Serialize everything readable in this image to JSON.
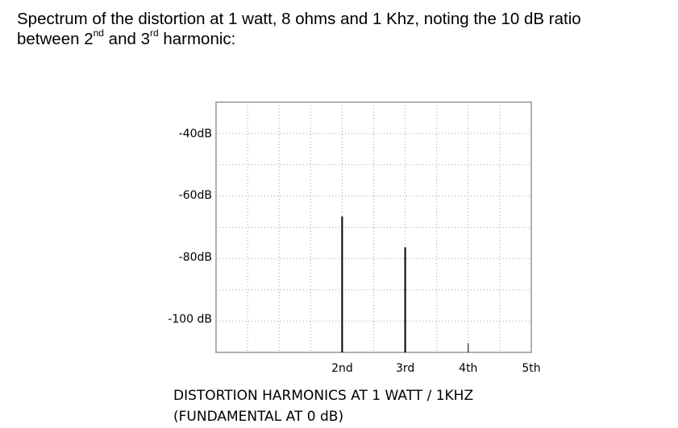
{
  "heading": {
    "line1": "Spectrum of the distortion at 1 watt, 8 ohms and 1 Khz, noting the 10 dB ratio",
    "line2_prefix": "between 2",
    "sup_nd": "nd",
    "line2_mid": " and 3",
    "sup_rd": "rd",
    "line2_suffix": " harmonic:"
  },
  "chart_data": {
    "type": "bar",
    "categories": [
      "2nd",
      "3rd",
      "4th",
      "5th"
    ],
    "values": [
      -67,
      -77,
      -108,
      -111
    ],
    "y_ticks": [
      {
        "value": -40,
        "label": "-40dB"
      },
      {
        "value": -60,
        "label": "-60dB"
      },
      {
        "value": -80,
        "label": "-80dB"
      },
      {
        "value": -100,
        "label": "-100 dB"
      }
    ],
    "ylim": [
      -111,
      -30
    ],
    "xlabel_line1": "DISTORTION HARMONICS AT 1 WATT / 1KHZ",
    "xlabel_line2": "(FUNDAMENTAL AT 0 dB)",
    "grid": true,
    "colors": {
      "grid": "#a0a0a0",
      "bar": "#000000"
    }
  }
}
